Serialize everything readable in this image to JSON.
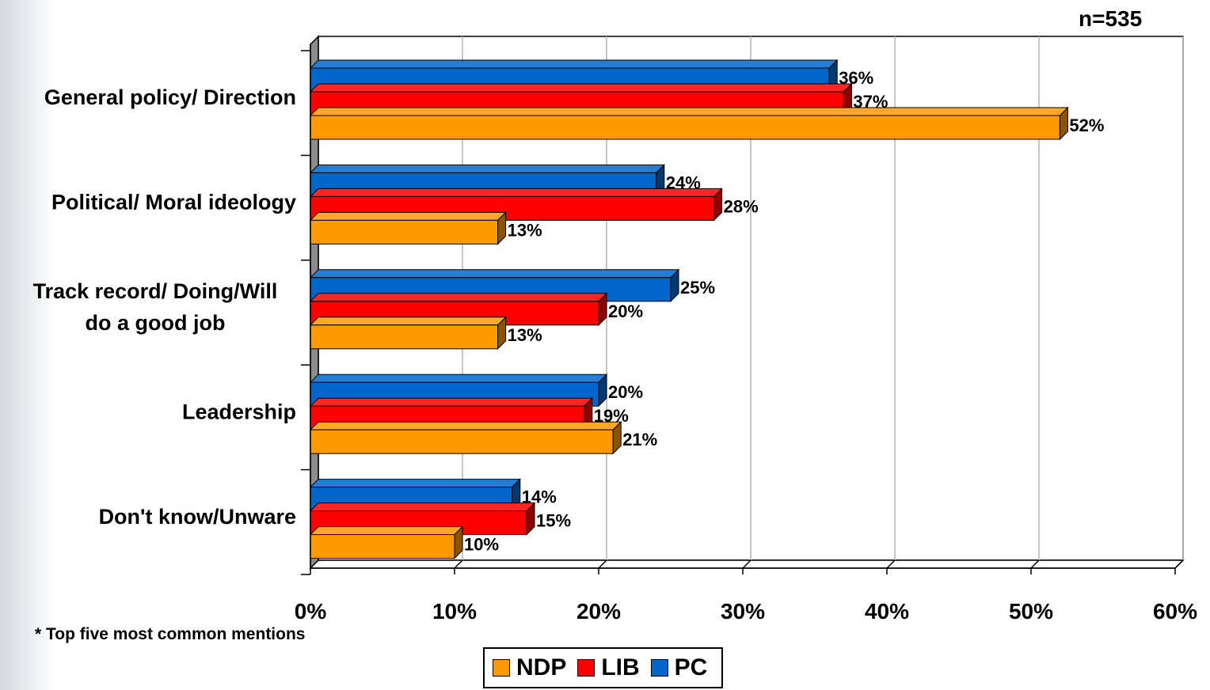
{
  "header": {
    "n_label": "n=535"
  },
  "footnote": "* Top five most common mentions",
  "chart_data": {
    "type": "bar",
    "orientation": "horizontal",
    "categories": [
      [
        "General policy/ Direction"
      ],
      [
        "Political/ Moral ideology"
      ],
      [
        "Track record/ Doing/Will",
        "do a good job"
      ],
      [
        "Leadership"
      ],
      [
        "Don't know/Unware"
      ]
    ],
    "series": [
      {
        "name": "PC",
        "color": "#0066cc",
        "values": [
          36,
          24,
          25,
          20,
          14
        ]
      },
      {
        "name": "LIB",
        "color": "#ff0000",
        "values": [
          37,
          28,
          20,
          19,
          15
        ]
      },
      {
        "name": "NDP",
        "color": "#ff9900",
        "values": [
          52,
          13,
          13,
          21,
          10
        ]
      }
    ],
    "data_labels": [
      [
        "36%",
        "24%",
        "25%",
        "20%",
        "14%"
      ],
      [
        "37%",
        "28%",
        "20%",
        "19%",
        "15%"
      ],
      [
        "52%",
        "13%",
        "13%",
        "21%",
        "10%"
      ]
    ],
    "xlim": [
      0,
      60
    ],
    "xticks": [
      0,
      10,
      20,
      30,
      40,
      50,
      60
    ],
    "xtick_labels": [
      "0%",
      "10%",
      "20%",
      "30%",
      "40%",
      "50%",
      "60%"
    ],
    "grid": true,
    "legend_position": "bottom"
  },
  "legend": [
    {
      "label": "NDP",
      "color": "#ff9900"
    },
    {
      "label": "LIB",
      "color": "#ff0000"
    },
    {
      "label": "PC",
      "color": "#0066cc"
    }
  ]
}
